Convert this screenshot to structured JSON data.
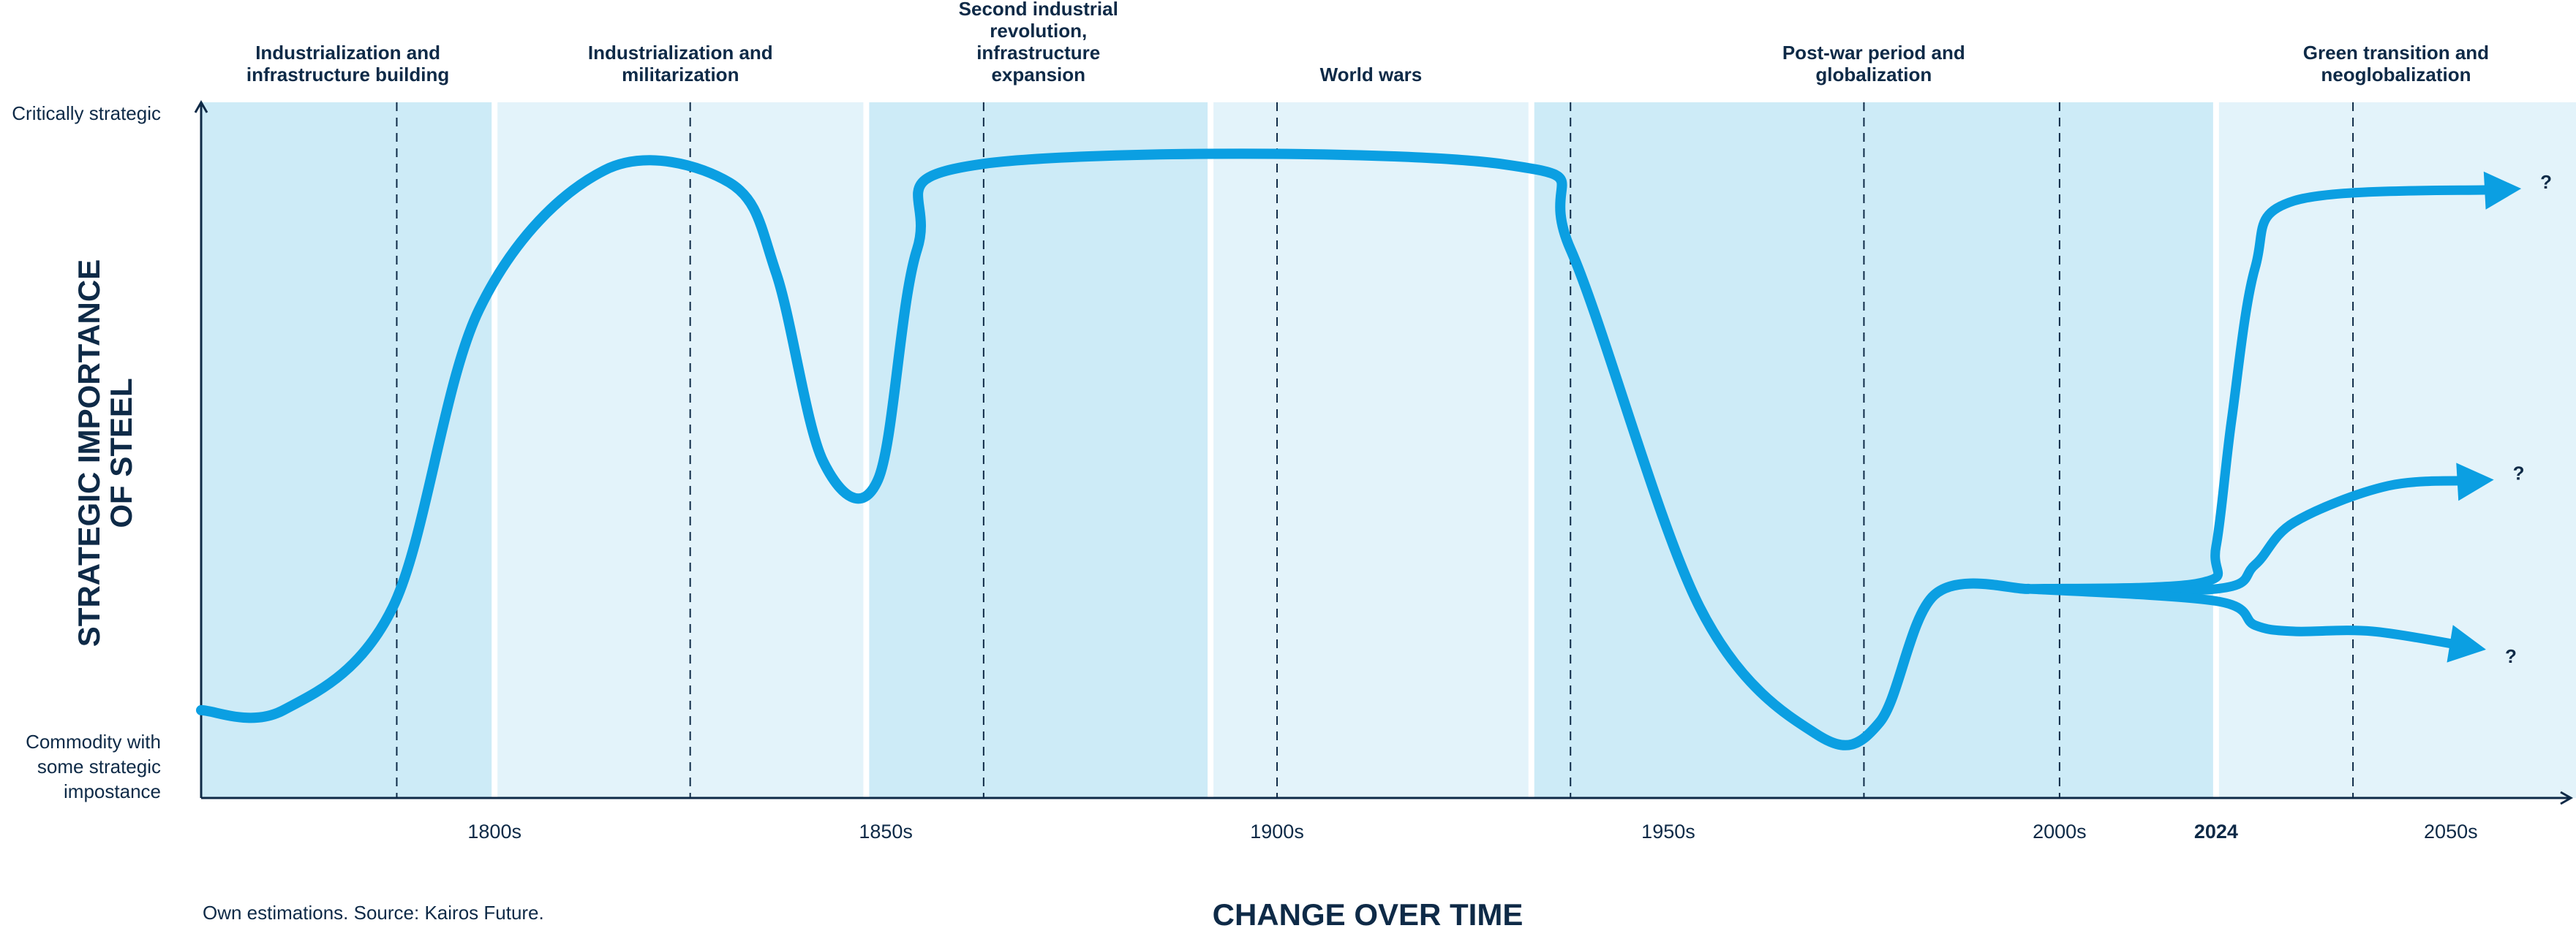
{
  "chart_data": {
    "type": "line",
    "xlabel": "CHANGE OVER TIME",
    "ylabel_lines": [
      "STRATEGIC IMPORTANCE",
      "OF STEEL"
    ],
    "y_categories": {
      "top": "Critically strategic",
      "bottom_lines": [
        "Commodity with",
        "some strategic",
        "impostance"
      ]
    },
    "x_ticks": [
      {
        "label": "1800s",
        "x": 1800,
        "bold": false
      },
      {
        "label": "1850s",
        "x": 1850,
        "bold": false
      },
      {
        "label": "1900s",
        "x": 1900,
        "bold": false
      },
      {
        "label": "1950s",
        "x": 1950,
        "bold": false
      },
      {
        "label": "2000s",
        "x": 2000,
        "bold": false
      },
      {
        "label": "2024",
        "x": 2020,
        "bold": true
      },
      {
        "label": "2050s",
        "x": 2050,
        "bold": false
      }
    ],
    "periods": [
      {
        "label_lines": [
          "Industrialization and",
          "infrastructure building"
        ],
        "start": 1762.5,
        "end": 1800,
        "shade": "dark"
      },
      {
        "label_lines": [
          "Industrialization and",
          "militarization"
        ],
        "start": 1800,
        "end": 1847.5,
        "shade": "light"
      },
      {
        "label_lines": [
          "Second industrial",
          "revolution,",
          "infrastructure",
          "expansion"
        ],
        "start": 1847.5,
        "end": 1891.5,
        "shade": "dark"
      },
      {
        "label_lines": [
          "World wars"
        ],
        "start": 1891.5,
        "end": 1932.5,
        "shade": "light"
      },
      {
        "label_lines": [
          "Post-war period and",
          "globalization"
        ],
        "start": 1932.5,
        "end": 2020,
        "shade": "dark"
      },
      {
        "label_lines": [
          "Green transition and",
          "neoglobalization"
        ],
        "start": 2020,
        "end": 2066,
        "shade": "light"
      }
    ],
    "dashed_lines_x": [
      1787.5,
      1825,
      1862.5,
      1900,
      1937.5,
      1975,
      2000,
      2037.5
    ],
    "ylim": [
      0,
      100
    ],
    "xlim": [
      1762.5,
      2066
    ],
    "series": [
      {
        "points": [
          {
            "x": 1762.5,
            "y": 7
          },
          {
            "x": 1773,
            "y": 7
          },
          {
            "x": 1787,
            "y": 24
          },
          {
            "x": 1798,
            "y": 73
          },
          {
            "x": 1814,
            "y": 96
          },
          {
            "x": 1830,
            "y": 94
          },
          {
            "x": 1836,
            "y": 79
          },
          {
            "x": 1842,
            "y": 48
          },
          {
            "x": 1849,
            "y": 45
          },
          {
            "x": 1854,
            "y": 83
          },
          {
            "x": 1862,
            "y": 97
          },
          {
            "x": 1929,
            "y": 97
          },
          {
            "x": 1937.5,
            "y": 83
          },
          {
            "x": 1954,
            "y": 24
          },
          {
            "x": 1969,
            "y": 3
          },
          {
            "x": 1977,
            "y": 5
          },
          {
            "x": 1984,
            "y": 26
          },
          {
            "x": 1996,
            "y": 27
          }
        ]
      }
    ],
    "scenarios": [
      {
        "label": "?",
        "end": {
          "x": 2059,
          "y": 93
        }
      },
      {
        "label": "?",
        "end": {
          "x": 2055.5,
          "y": 45
        }
      },
      {
        "label": "?",
        "end": {
          "x": 2054.5,
          "y": 17
        }
      }
    ],
    "colors": {
      "band_dark": "#cdebf7",
      "band_light": "#e3f3fa",
      "line": "#0b9fe2",
      "axis": "#0e2a47",
      "text": "#0e2a47"
    }
  },
  "footer": {
    "source": "Own estimations. Source: Kairos Future."
  }
}
